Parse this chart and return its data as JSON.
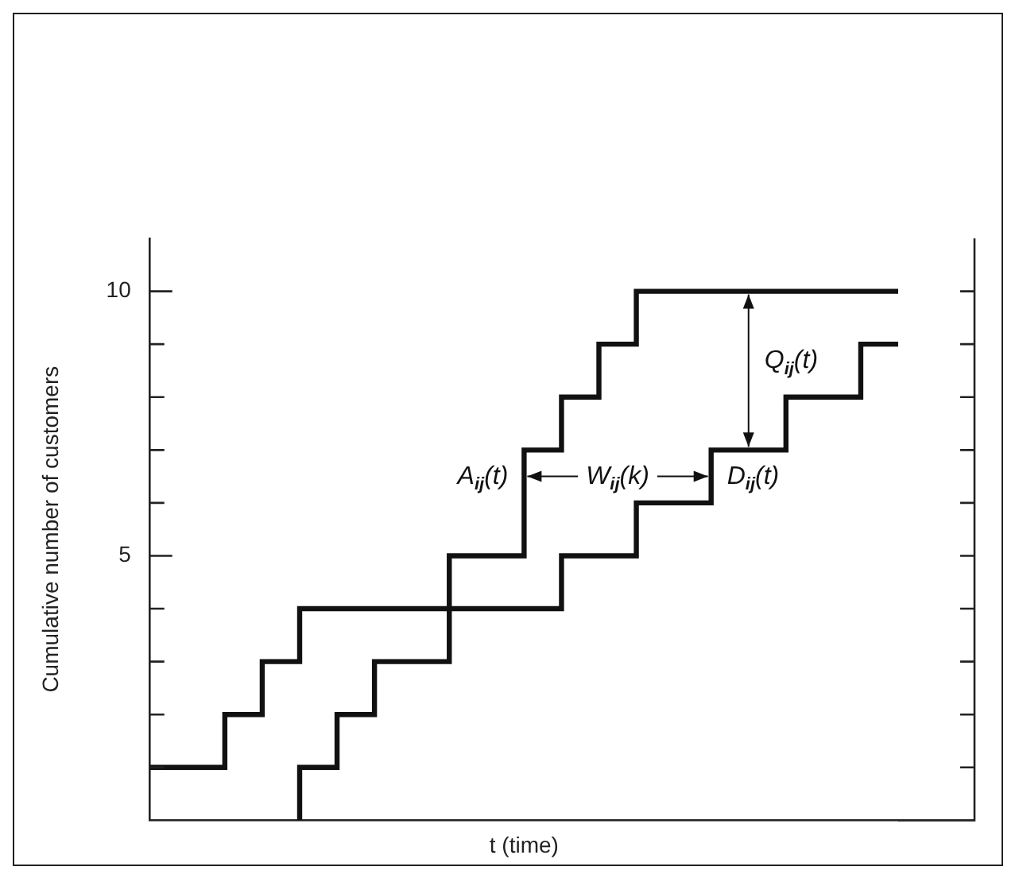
{
  "chart_data": {
    "type": "step",
    "xlabel": "t (time)",
    "ylabel": "Cumulative number of customers",
    "ylim": [
      0,
      11
    ],
    "categories": [
      null,
      null,
      null,
      null,
      null,
      null,
      null,
      null,
      null,
      null,
      null,
      null,
      null,
      null,
      null,
      null,
      null,
      null,
      null,
      null,
      null
    ],
    "yticks": [
      {
        "value": 1,
        "label": null
      },
      {
        "value": 2,
        "label": null
      },
      {
        "value": 3,
        "label": null
      },
      {
        "value": 4,
        "label": null
      },
      5,
      {
        "value": 6,
        "label": null
      },
      {
        "value": 7,
        "label": null
      },
      {
        "value": 8,
        "label": null
      },
      {
        "value": 9,
        "label": null
      },
      10
    ],
    "tick_labels": "y",
    "grid": false,
    "legend": false,
    "marker": "none",
    "series": [
      {
        "color": "#111111",
        "values": [
          1,
          1,
          1,
          2,
          3,
          4,
          4,
          4,
          4,
          5,
          5,
          7,
          8,
          9,
          10,
          10,
          10,
          10,
          10,
          10,
          10
        ]
      },
      {
        "color": "#111111",
        "values": [
          null,
          null,
          null,
          null,
          0,
          1,
          2,
          3,
          3,
          4,
          4,
          4,
          5,
          5,
          6,
          6,
          7,
          7,
          8,
          8,
          9
        ]
      }
    ],
    "annotations": [
      "A$_{ij}$(t)",
      "W$_{ij}$(k)",
      "D$_{ij}$(t)",
      "Q$_{ij}$(t)"
    ]
  }
}
